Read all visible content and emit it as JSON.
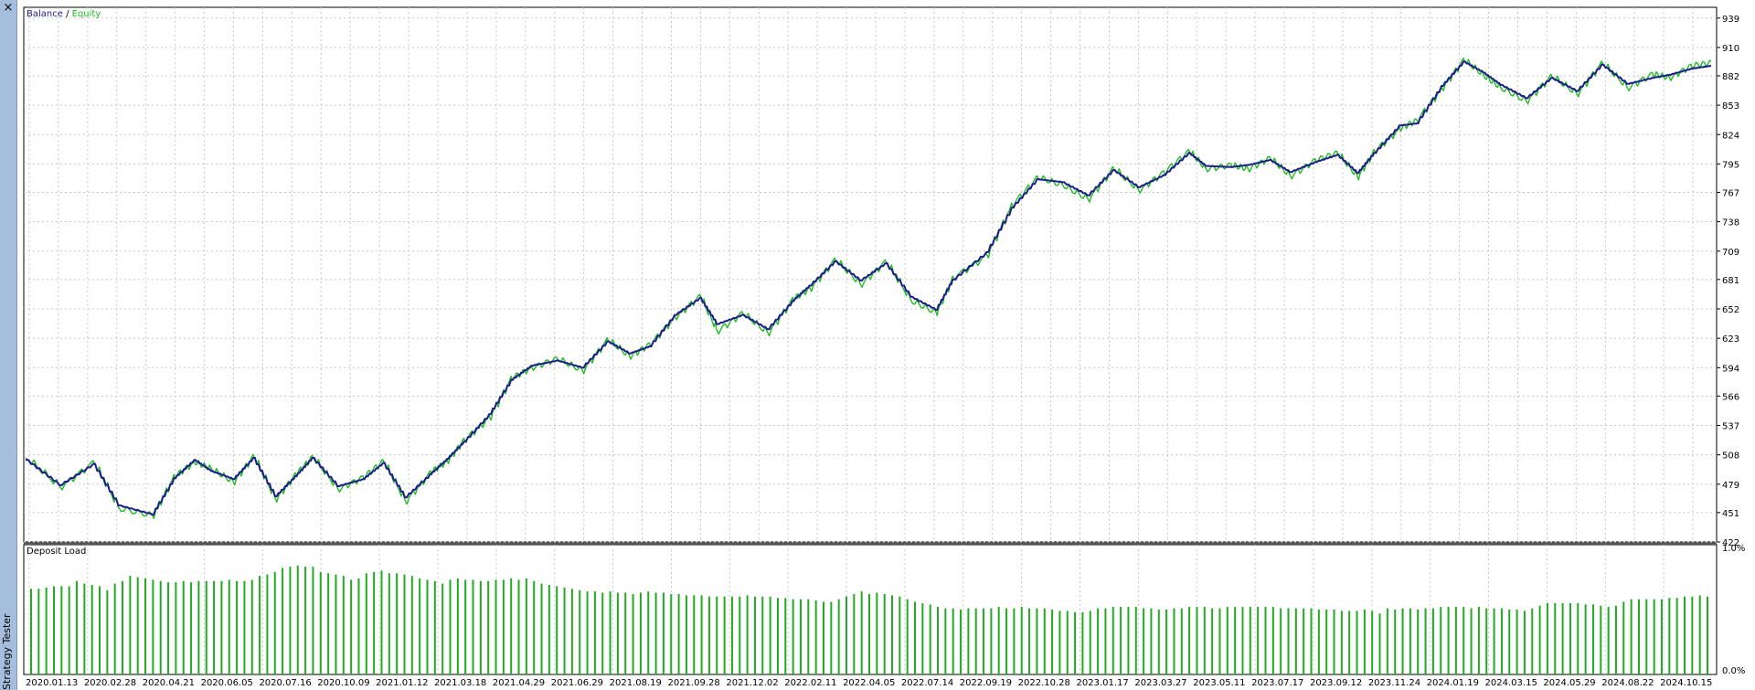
{
  "panel": {
    "close_label": "×",
    "title": "Strategy Tester"
  },
  "colors": {
    "balance": "#1c1c8c",
    "equity": "#22bb22",
    "grid": "#c8c8c8",
    "bar": "#22aa22"
  },
  "chart_data": [
    {
      "type": "line",
      "legend": {
        "balance": "Balance",
        "separator": " / ",
        "equity": "Equity",
        "placement": "top-left"
      },
      "yticks": [
        939,
        910,
        882,
        853,
        824,
        795,
        767,
        738,
        709,
        681,
        652,
        623,
        594,
        566,
        537,
        508,
        479,
        451,
        422
      ],
      "ylim": [
        422,
        946
      ],
      "grid": true,
      "series": [
        {
          "name": "Balance",
          "x": [
            0,
            0.02,
            0.04,
            0.055,
            0.075,
            0.088,
            0.1,
            0.11,
            0.123,
            0.135,
            0.148,
            0.16,
            0.17,
            0.185,
            0.2,
            0.212,
            0.225,
            0.24,
            0.25,
            0.26,
            0.275,
            0.288,
            0.3,
            0.315,
            0.33,
            0.345,
            0.358,
            0.37,
            0.385,
            0.4,
            0.41,
            0.425,
            0.44,
            0.455,
            0.465,
            0.48,
            0.495,
            0.51,
            0.525,
            0.54,
            0.55,
            0.57,
            0.585,
            0.6,
            0.615,
            0.63,
            0.645,
            0.66,
            0.675,
            0.69,
            0.7,
            0.715,
            0.725,
            0.738,
            0.75,
            0.765,
            0.778,
            0.79,
            0.8,
            0.815,
            0.825,
            0.84,
            0.853,
            0.865,
            0.875,
            0.89,
            0.905,
            0.92,
            0.935,
            0.95,
            0.965,
            0.975,
            0.988,
            1.0
          ],
          "y": [
            503,
            478,
            499,
            458,
            449,
            485,
            503,
            492,
            484,
            505,
            467,
            487,
            505,
            477,
            484,
            500,
            466,
            489,
            504,
            521,
            548,
            582,
            596,
            601,
            594,
            620,
            608,
            615,
            646,
            663,
            637,
            646,
            632,
            660,
            675,
            699,
            680,
            697,
            664,
            651,
            681,
            708,
            752,
            780,
            777,
            764,
            789,
            772,
            784,
            806,
            793,
            792,
            794,
            799,
            787,
            797,
            804,
            786,
            806,
            833,
            835,
            872,
            896,
            885,
            873,
            860,
            880,
            867,
            893,
            874,
            880,
            883,
            889,
            892
          ]
        },
        {
          "name": "Equity",
          "x": [
            0,
            0.02,
            0.04,
            0.055,
            0.075,
            0.088,
            0.1,
            0.11,
            0.123,
            0.135,
            0.148,
            0.16,
            0.17,
            0.185,
            0.2,
            0.212,
            0.225,
            0.24,
            0.25,
            0.26,
            0.275,
            0.288,
            0.3,
            0.315,
            0.33,
            0.345,
            0.358,
            0.37,
            0.385,
            0.4,
            0.41,
            0.425,
            0.44,
            0.455,
            0.465,
            0.48,
            0.495,
            0.51,
            0.525,
            0.54,
            0.55,
            0.57,
            0.585,
            0.6,
            0.615,
            0.63,
            0.645,
            0.66,
            0.675,
            0.69,
            0.7,
            0.715,
            0.725,
            0.738,
            0.75,
            0.765,
            0.778,
            0.79,
            0.8,
            0.815,
            0.825,
            0.84,
            0.853,
            0.865,
            0.875,
            0.89,
            0.905,
            0.92,
            0.935,
            0.95,
            0.965,
            0.975,
            0.988,
            1.0
          ],
          "y": [
            505,
            476,
            501,
            455,
            448,
            487,
            501,
            494,
            481,
            507,
            464,
            489,
            506,
            474,
            486,
            502,
            462,
            491,
            502,
            523,
            545,
            584,
            594,
            603,
            591,
            622,
            605,
            617,
            644,
            665,
            630,
            648,
            628,
            662,
            672,
            701,
            676,
            699,
            660,
            648,
            683,
            705,
            755,
            782,
            774,
            760,
            791,
            769,
            787,
            808,
            790,
            794,
            790,
            801,
            783,
            799,
            806,
            782,
            808,
            830,
            838,
            870,
            898,
            882,
            870,
            857,
            882,
            864,
            895,
            870,
            884,
            880,
            892,
            895
          ]
        }
      ]
    },
    {
      "type": "bar",
      "title": "Deposit Load",
      "yticks": [
        "1.0%",
        "0.0%"
      ],
      "ylim": [
        0,
        1.0
      ],
      "values": [
        0.66,
        0.66,
        0.67,
        0.68,
        0.68,
        0.68,
        0.72,
        0.7,
        0.69,
        0.68,
        0.65,
        0.7,
        0.72,
        0.76,
        0.75,
        0.74,
        0.73,
        0.72,
        0.71,
        0.71,
        0.72,
        0.71,
        0.72,
        0.72,
        0.72,
        0.72,
        0.73,
        0.72,
        0.72,
        0.73,
        0.76,
        0.77,
        0.79,
        0.82,
        0.83,
        0.84,
        0.83,
        0.83,
        0.79,
        0.78,
        0.77,
        0.76,
        0.73,
        0.74,
        0.78,
        0.79,
        0.8,
        0.78,
        0.78,
        0.77,
        0.76,
        0.74,
        0.73,
        0.72,
        0.7,
        0.73,
        0.74,
        0.73,
        0.73,
        0.72,
        0.72,
        0.73,
        0.73,
        0.74,
        0.73,
        0.74,
        0.72,
        0.7,
        0.69,
        0.68,
        0.67,
        0.66,
        0.65,
        0.64,
        0.64,
        0.63,
        0.64,
        0.63,
        0.63,
        0.62,
        0.63,
        0.64,
        0.63,
        0.63,
        0.62,
        0.62,
        0.61,
        0.61,
        0.61,
        0.6,
        0.6,
        0.6,
        0.6,
        0.6,
        0.61,
        0.6,
        0.6,
        0.6,
        0.59,
        0.59,
        0.58,
        0.58,
        0.58,
        0.57,
        0.56,
        0.56,
        0.58,
        0.6,
        0.62,
        0.64,
        0.62,
        0.63,
        0.62,
        0.61,
        0.6,
        0.58,
        0.56,
        0.55,
        0.54,
        0.52,
        0.51,
        0.51,
        0.5,
        0.51,
        0.51,
        0.51,
        0.51,
        0.52,
        0.51,
        0.51,
        0.52,
        0.51,
        0.51,
        0.51,
        0.5,
        0.49,
        0.49,
        0.48,
        0.48,
        0.49,
        0.51,
        0.51,
        0.52,
        0.52,
        0.52,
        0.52,
        0.51,
        0.51,
        0.5,
        0.5,
        0.51,
        0.51,
        0.52,
        0.52,
        0.52,
        0.51,
        0.51,
        0.52,
        0.52,
        0.52,
        0.52,
        0.52,
        0.52,
        0.52,
        0.51,
        0.51,
        0.51,
        0.51,
        0.51,
        0.5,
        0.5,
        0.5,
        0.49,
        0.49,
        0.49,
        0.5,
        0.49,
        0.47,
        0.51,
        0.5,
        0.51,
        0.51,
        0.5,
        0.51,
        0.51,
        0.52,
        0.52,
        0.52,
        0.52,
        0.51,
        0.52,
        0.51,
        0.51,
        0.51,
        0.5,
        0.5,
        0.49,
        0.51,
        0.53,
        0.55,
        0.55,
        0.55,
        0.55,
        0.55,
        0.54,
        0.54,
        0.53,
        0.52,
        0.53,
        0.56,
        0.58,
        0.58,
        0.58,
        0.58,
        0.58,
        0.59,
        0.59,
        0.6,
        0.6,
        0.61,
        0.6
      ]
    }
  ],
  "xaxis": {
    "labels": [
      "2020.01.13",
      "2020.02.28",
      "2020.04.21",
      "2020.06.05",
      "2020.07.16",
      "2020.10.09",
      "2021.01.12",
      "2021.03.18",
      "2021.04.29",
      "2021.06.29",
      "2021.08.19",
      "2021.09.28",
      "2021.12.02",
      "2022.02.11",
      "2022.04.05",
      "2022.07.14",
      "2022.09.19",
      "2022.10.28",
      "2023.01.17",
      "2023.03.27",
      "2023.05.11",
      "2023.07.17",
      "2023.09.12",
      "2023.11.24",
      "2024.01.19",
      "2024.03.15",
      "2024.05.29",
      "2024.08.22",
      "2024.10.15"
    ]
  }
}
